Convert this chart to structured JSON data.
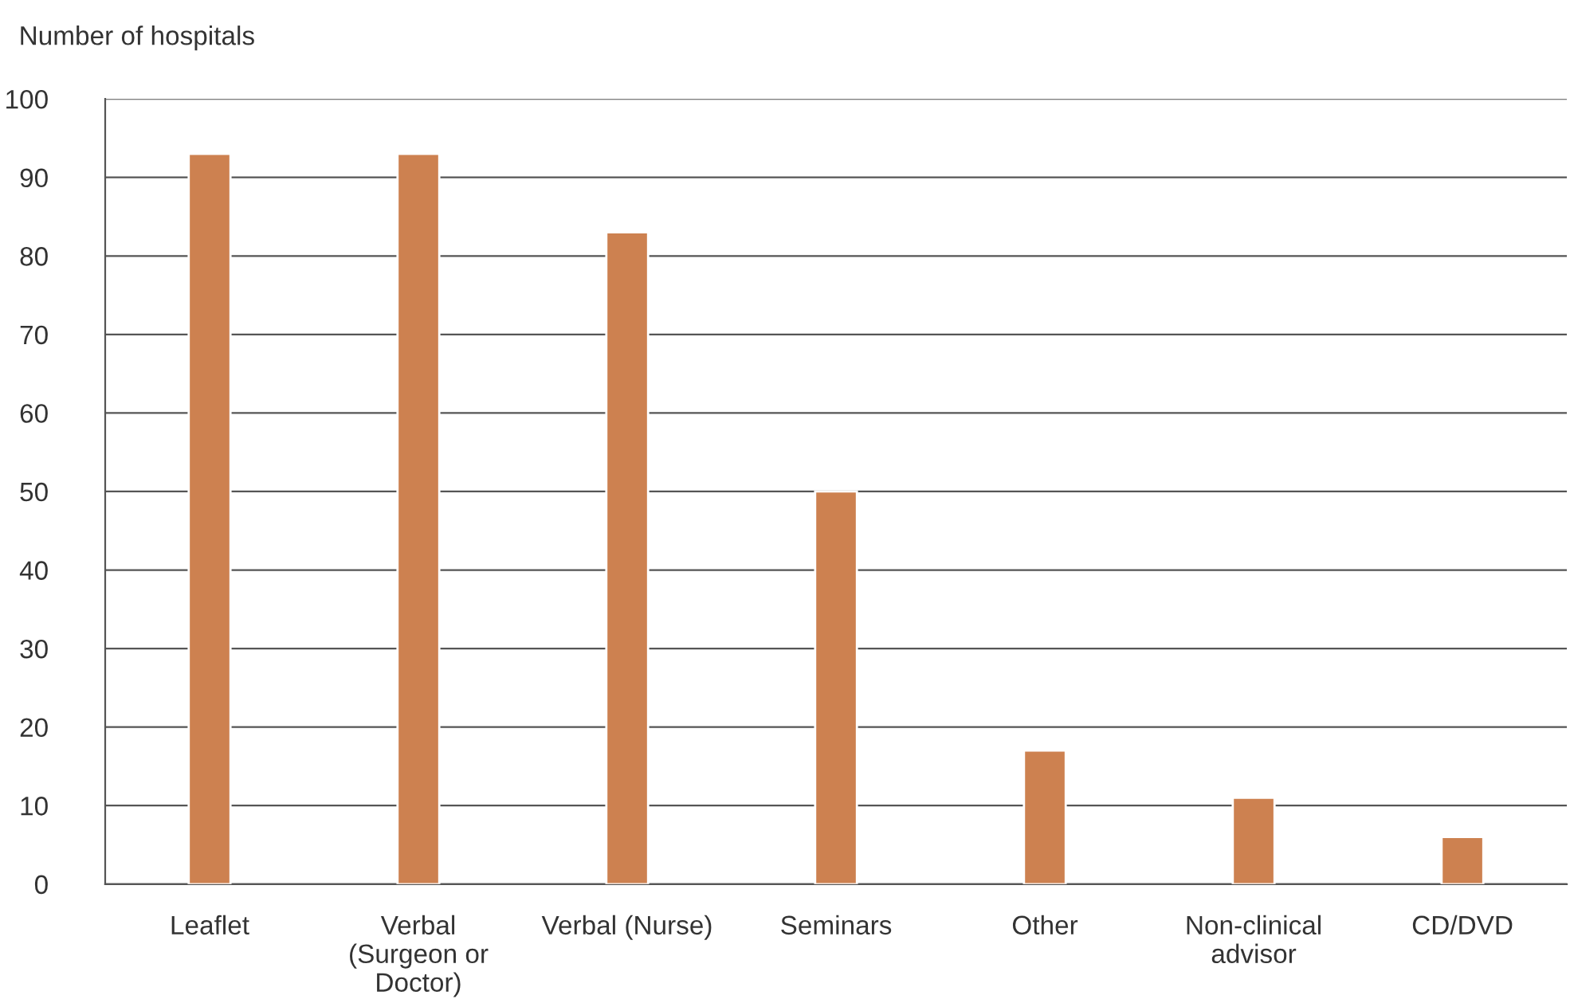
{
  "chart_data": {
    "type": "bar",
    "ylabel": "Number of hospitals",
    "categories": [
      "Leaflet",
      "Verbal\n(Surgeon or\nDoctor)",
      "Verbal (Nurse)",
      "Seminars",
      "Other",
      "Non-clinical\nadvisor",
      "CD/DVD"
    ],
    "values": [
      93,
      93,
      83,
      50,
      17,
      11,
      6
    ],
    "color": "#cd8150",
    "ylim": [
      0,
      100
    ],
    "yticks": [
      0,
      10,
      20,
      30,
      40,
      50,
      60,
      70,
      80,
      90,
      100
    ],
    "grid": "y"
  }
}
